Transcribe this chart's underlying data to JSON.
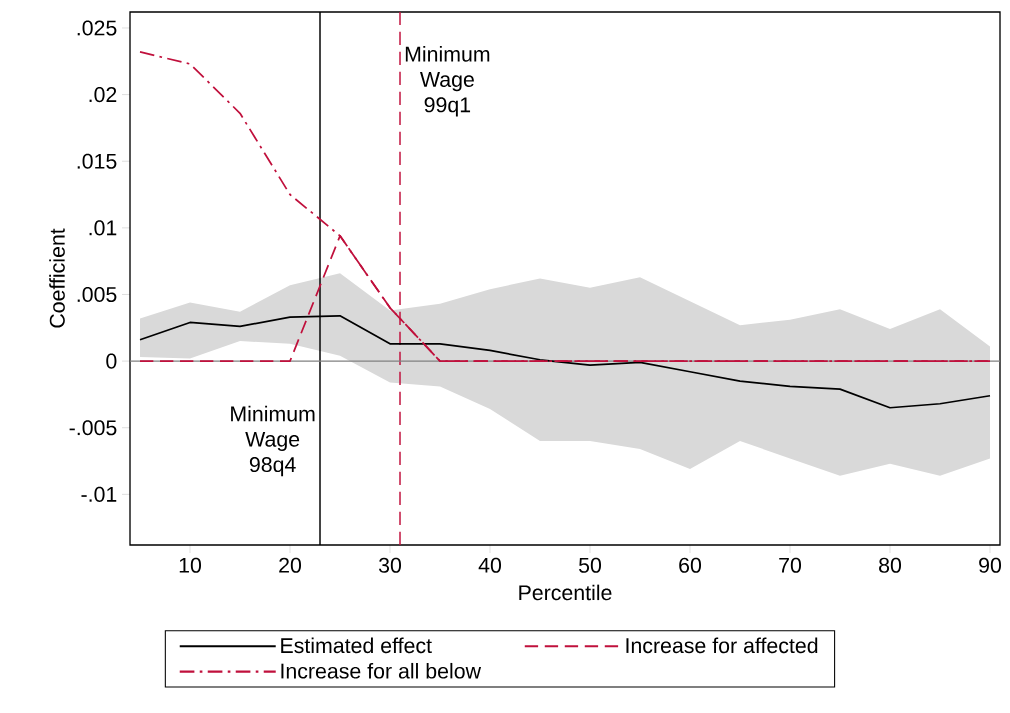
{
  "chart_data": {
    "type": "line",
    "xlabel": "Percentile",
    "ylabel": "Coefficient",
    "x": [
      5,
      10,
      15,
      20,
      25,
      30,
      35,
      40,
      45,
      50,
      55,
      60,
      65,
      70,
      75,
      80,
      85,
      90
    ],
    "series": [
      {
        "name": "Estimated effect",
        "color": "#000000",
        "line_style": "solid",
        "values": [
          0.0016,
          0.0029,
          0.0026,
          0.0033,
          0.0034,
          0.0013,
          0.0013,
          0.0008,
          0.0001,
          -0.0003,
          -0.0001,
          -0.0008,
          -0.0015,
          -0.0019,
          -0.0021,
          -0.0035,
          -0.0032,
          -0.0026
        ],
        "upper": [
          0.0032,
          0.0044,
          0.0037,
          0.0057,
          0.0066,
          0.0038,
          0.0043,
          0.0054,
          0.0062,
          0.0055,
          0.0063,
          0.0045,
          0.0027,
          0.0031,
          0.0039,
          0.0024,
          0.0039,
          0.0011
        ],
        "lower": [
          0.0003,
          0.0002,
          0.0015,
          0.0013,
          0.0004,
          -0.0016,
          -0.0019,
          -0.0036,
          -0.006,
          -0.006,
          -0.0066,
          -0.0081,
          -0.006,
          -0.0073,
          -0.0086,
          -0.0077,
          -0.0086,
          -0.0073
        ]
      },
      {
        "name": "Increase for affected",
        "color": "#c0103c",
        "line_style": "dashed",
        "values": [
          0,
          0,
          0,
          0,
          0.0094,
          0.004,
          0,
          0,
          0,
          0,
          0,
          0,
          0,
          0,
          0,
          0,
          0,
          0
        ]
      },
      {
        "name": "Increase for all below",
        "color": "#c0103c",
        "line_style": "dashdot",
        "values": [
          0.0232,
          0.0223,
          0.0186,
          0.0125,
          0.0094,
          0.004,
          0,
          0,
          0,
          0,
          0,
          0,
          0,
          0,
          0,
          0,
          0,
          0
        ]
      }
    ],
    "ref_lines": [
      {
        "axis": "x",
        "value": 23,
        "label": "Minimum Wage 98q4",
        "color": "#000000",
        "line_style": "solid"
      },
      {
        "axis": "x",
        "value": 31,
        "label": "Minimum Wage 99q1",
        "color": "#c0103c",
        "line_style": "dashed"
      },
      {
        "axis": "y",
        "value": 0,
        "color": "#808080",
        "line_style": "solid"
      }
    ],
    "xlim": [
      4,
      91
    ],
    "ylim": [
      -0.0138,
      0.0262
    ],
    "xticks": [
      10,
      20,
      30,
      40,
      50,
      60,
      70,
      80,
      90
    ],
    "yticks": [
      {
        "value": -0.01,
        "label": "-.01"
      },
      {
        "value": -0.005,
        "label": "-.005"
      },
      0,
      {
        "value": 0.005,
        "label": ".005"
      },
      {
        "value": 0.01,
        "label": ".01"
      },
      {
        "value": 0.015,
        "label": ".015"
      },
      {
        "value": 0.02,
        "label": ".02"
      },
      {
        "value": 0.025,
        "label": ".025"
      }
    ],
    "legend": "bottom"
  }
}
